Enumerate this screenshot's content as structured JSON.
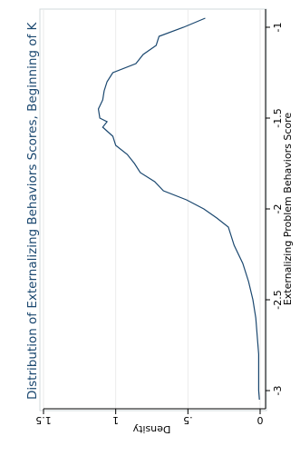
{
  "chart_data": {
    "type": "line",
    "title": "Distribution of Externalizing Behaviors Scores, Beginning of K",
    "x_label": "Externalizing Problem Behaviors Score",
    "y_label": "Density",
    "x": [
      -3.05,
      -3.0,
      -2.9,
      -2.8,
      -2.7,
      -2.6,
      -2.5,
      -2.4,
      -2.3,
      -2.2,
      -2.1,
      -2.05,
      -2.0,
      -1.95,
      -1.9,
      -1.85,
      -1.8,
      -1.75,
      -1.7,
      -1.65,
      -1.6,
      -1.55,
      -1.52,
      -1.5,
      -1.45,
      -1.4,
      -1.35,
      -1.3,
      -1.25,
      -1.2,
      -1.15,
      -1.1,
      -1.05,
      -1.0,
      -0.95
    ],
    "series": [
      {
        "color": "#1a476f",
        "values": [
          0.005,
          0.01,
          0.01,
          0.01,
          0.02,
          0.03,
          0.05,
          0.08,
          0.12,
          0.18,
          0.22,
          0.3,
          0.39,
          0.51,
          0.67,
          0.73,
          0.83,
          0.87,
          0.92,
          1.0,
          1.02,
          1.09,
          1.06,
          1.11,
          1.12,
          1.09,
          1.08,
          1.06,
          1.02,
          0.86,
          0.81,
          0.72,
          0.7,
          0.53,
          0.38
        ]
      }
    ],
    "xlim": [
      -3.1,
      -0.9
    ],
    "xticks": [
      -3,
      -2.5,
      -2,
      -1.5,
      -1
    ],
    "ylim": [
      0,
      1.5
    ],
    "yticks": [
      0,
      {
        "value": 0.5,
        "label": ".5"
      },
      1,
      1.5
    ],
    "grid": true
  }
}
